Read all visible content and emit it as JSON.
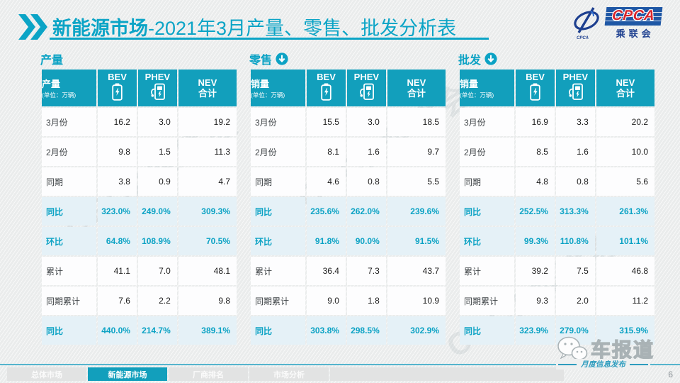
{
  "header": {
    "title_bold": "新能源市场",
    "title_rest": "-2021年3月产量、零售、批发分析表",
    "logo": {
      "acronym": "CPCA",
      "name": "乘联会",
      "swoosh_text": "CPCA"
    }
  },
  "colors": {
    "accent": "#129fbc",
    "title_teal": "#0ba4c6",
    "highlight_row_bg": "#e5f1f7",
    "logo_blue": "#1e57a5",
    "logo_red": "#d8252c"
  },
  "watermark": "CPCA乘联会",
  "tables": [
    {
      "section_title": "产量",
      "section_icon": null,
      "corner_label": "产量",
      "corner_unit": "(单位：万辆)",
      "columns": [
        {
          "top": "BEV",
          "icon": "battery-icon"
        },
        {
          "top": "PHEV",
          "icon": "charger-icon"
        },
        {
          "top": "NEV",
          "bottom": "合计"
        }
      ],
      "rows": [
        {
          "label": "3月份",
          "values": [
            "16.2",
            "3.0",
            "19.2"
          ],
          "highlight": false
        },
        {
          "label": "2月份",
          "values": [
            "9.8",
            "1.5",
            "11.3"
          ],
          "highlight": false
        },
        {
          "label": "同期",
          "values": [
            "3.8",
            "0.9",
            "4.7"
          ],
          "highlight": false
        },
        {
          "label": "同比",
          "values": [
            "323.0%",
            "249.0%",
            "309.3%"
          ],
          "highlight": true
        },
        {
          "label": "环比",
          "values": [
            "64.8%",
            "108.9%",
            "70.5%"
          ],
          "highlight": true
        },
        {
          "label": "累计",
          "values": [
            "41.1",
            "7.0",
            "48.1"
          ],
          "highlight": false
        },
        {
          "label": "同期累计",
          "values": [
            "7.6",
            "2.2",
            "9.8"
          ],
          "highlight": false
        },
        {
          "label": "同比",
          "values": [
            "440.0%",
            "214.7%",
            "389.1%"
          ],
          "highlight": true
        }
      ]
    },
    {
      "section_title": "零售",
      "section_icon": "circle-down-icon",
      "corner_label": "销量",
      "corner_unit": "(单位：万辆)",
      "columns": [
        {
          "top": "BEV",
          "icon": "battery-icon"
        },
        {
          "top": "PHEV",
          "icon": "charger-icon"
        },
        {
          "top": "NEV",
          "bottom": "合计"
        }
      ],
      "rows": [
        {
          "label": "3月份",
          "values": [
            "15.5",
            "3.0",
            "18.5"
          ],
          "highlight": false
        },
        {
          "label": "2月份",
          "values": [
            "8.1",
            "1.6",
            "9.7"
          ],
          "highlight": false
        },
        {
          "label": "同期",
          "values": [
            "4.6",
            "0.8",
            "5.5"
          ],
          "highlight": false
        },
        {
          "label": "同比",
          "values": [
            "235.6%",
            "262.0%",
            "239.6%"
          ],
          "highlight": true
        },
        {
          "label": "环比",
          "values": [
            "91.8%",
            "90.0%",
            "91.5%"
          ],
          "highlight": true
        },
        {
          "label": "累计",
          "values": [
            "36.4",
            "7.3",
            "43.7"
          ],
          "highlight": false
        },
        {
          "label": "同期累计",
          "values": [
            "9.0",
            "1.8",
            "10.9"
          ],
          "highlight": false
        },
        {
          "label": "同比",
          "values": [
            "303.8%",
            "298.5%",
            "302.9%"
          ],
          "highlight": true
        }
      ]
    },
    {
      "section_title": "批发",
      "section_icon": "circle-down-icon",
      "corner_label": "销量",
      "corner_unit": "(单位：万辆)",
      "columns": [
        {
          "top": "BEV",
          "icon": "battery-icon"
        },
        {
          "top": "PHEV",
          "icon": "charger-icon"
        },
        {
          "top": "NEV",
          "bottom": "合计"
        }
      ],
      "rows": [
        {
          "label": "3月份",
          "values": [
            "16.9",
            "3.3",
            "20.2"
          ],
          "highlight": false
        },
        {
          "label": "2月份",
          "values": [
            "8.5",
            "1.6",
            "10.0"
          ],
          "highlight": false
        },
        {
          "label": "同期",
          "values": [
            "4.8",
            "0.8",
            "5.6"
          ],
          "highlight": false
        },
        {
          "label": "同比",
          "values": [
            "252.5%",
            "313.3%",
            "261.3%"
          ],
          "highlight": true
        },
        {
          "label": "环比",
          "values": [
            "99.3%",
            "110.8%",
            "101.1%"
          ],
          "highlight": true
        },
        {
          "label": "累计",
          "values": [
            "39.2",
            "7.5",
            "46.8"
          ],
          "highlight": false
        },
        {
          "label": "同期累计",
          "values": [
            "9.3",
            "2.0",
            "11.2"
          ],
          "highlight": false
        },
        {
          "label": "同比",
          "values": [
            "323.9%",
            "279.0%",
            "315.9%"
          ],
          "highlight": true
        }
      ]
    }
  ],
  "footer": {
    "tabs": [
      {
        "label": "总体市场",
        "active": false
      },
      {
        "label": "新能源市场",
        "active": true
      },
      {
        "label": "厂商排名",
        "active": false
      },
      {
        "label": "市场分析",
        "active": false
      }
    ],
    "brand": "车报道",
    "publish_label": "月度信息发布",
    "page_number": "6"
  }
}
